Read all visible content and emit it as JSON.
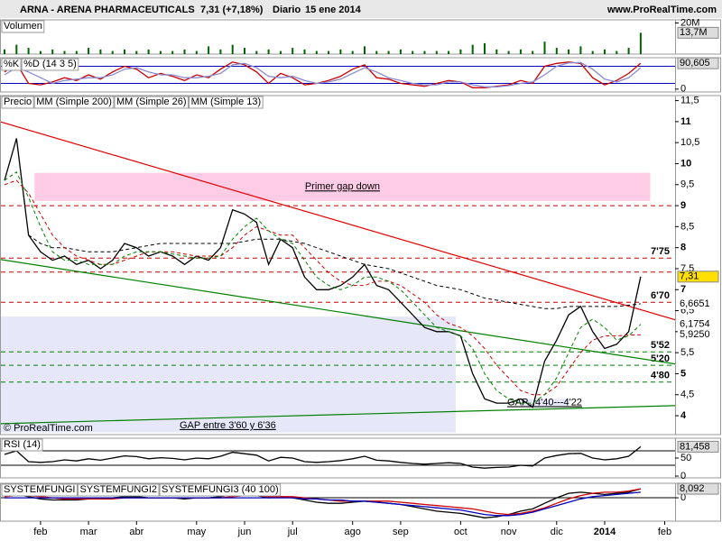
{
  "header": {
    "symbol": "ARNA - ARENA PHARMACEUTICALS",
    "price": "7,31 (+7,18%)",
    "period": "Diario",
    "date": "15 ene 2014",
    "source": "www.ProRealTime.com"
  },
  "chart_data": [
    {
      "type": "bar",
      "label": "Volumen",
      "series": [
        {
          "color": "#006400",
          "values": [
            3,
            6,
            4,
            2,
            3,
            2,
            2,
            4,
            3,
            2,
            3,
            2,
            3,
            2,
            2,
            3,
            2,
            5,
            3,
            6,
            4,
            2,
            3,
            2,
            4,
            3,
            2,
            2,
            3,
            2,
            5,
            2,
            2,
            3,
            2,
            2,
            2,
            2,
            3,
            6,
            7,
            3,
            2,
            3,
            2,
            8,
            4,
            3,
            5,
            2,
            3,
            2,
            4,
            13.7,
            null,
            null
          ]
        }
      ],
      "ylim": [
        0,
        22
      ],
      "yticks": [
        {
          "value": 20,
          "label": "20M"
        }
      ],
      "markers": [
        {
          "value": 13.7,
          "label": "13,7M",
          "color": "#000000",
          "bg": "#dddddd"
        }
      ]
    },
    {
      "type": "line",
      "series": [
        {
          "name": "%K",
          "color": "#cc0000",
          "values": [
            60,
            90,
            20,
            15,
            25,
            40,
            30,
            50,
            35,
            60,
            80,
            70,
            40,
            55,
            45,
            30,
            50,
            40,
            70,
            95,
            85,
            60,
            20,
            55,
            40,
            15,
            20,
            30,
            45,
            70,
            85,
            40,
            35,
            20,
            15,
            10,
            20,
            30,
            25,
            5,
            5,
            10,
            15,
            30,
            20,
            80,
            90,
            95,
            90,
            40,
            15,
            30,
            55,
            90.605,
            null,
            null
          ]
        },
        {
          "name": "%D (14 3 5)",
          "color": "#8a8ad0",
          "values": [
            50,
            75,
            60,
            40,
            20,
            30,
            35,
            40,
            40,
            50,
            70,
            75,
            60,
            50,
            50,
            40,
            40,
            45,
            55,
            85,
            90,
            75,
            45,
            40,
            45,
            30,
            20,
            25,
            35,
            55,
            75,
            60,
            40,
            30,
            20,
            15,
            15,
            25,
            25,
            15,
            8,
            8,
            12,
            20,
            25,
            50,
            80,
            92,
            93,
            70,
            35,
            25,
            40,
            75,
            null,
            null
          ]
        }
      ],
      "ylim": [
        -10,
        110
      ],
      "yticks": [
        0
      ],
      "levels": [
        {
          "value": 80,
          "color": "#0000c0"
        },
        {
          "value": 20,
          "color": "#0000c0"
        }
      ],
      "markers": [
        {
          "value": 90.605,
          "label": "90,605",
          "color": "#000000",
          "bg": "#dddddd"
        }
      ]
    },
    {
      "type": "line",
      "copyright": "© ProRealTime.com",
      "series": [
        {
          "name": "Precio",
          "color": "#000000",
          "values": [
            9.6,
            10.6,
            8.3,
            7.9,
            7.7,
            7.8,
            7.6,
            7.7,
            7.5,
            7.7,
            8.1,
            8.0,
            7.8,
            7.9,
            7.8,
            7.6,
            7.8,
            7.7,
            8.0,
            8.9,
            8.8,
            8.6,
            7.6,
            8.2,
            8.0,
            7.3,
            7.0,
            7.0,
            7.1,
            7.3,
            7.6,
            7.1,
            7.0,
            6.7,
            6.4,
            6.1,
            6.0,
            6.0,
            5.9,
            5.0,
            4.4,
            4.3,
            4.3,
            4.4,
            4.2,
            5.3,
            5.8,
            6.4,
            6.6,
            6.0,
            5.6,
            5.7,
            6.0,
            7.31,
            null,
            null
          ]
        },
        {
          "name": "MM (Simple 200)",
          "color": "#000000",
          "dash": true,
          "values": [
            null,
            null,
            8.3,
            8.1,
            8.0,
            8.0,
            7.95,
            7.9,
            7.9,
            7.9,
            7.95,
            8.0,
            8.05,
            8.1,
            8.1,
            8.1,
            8.1,
            8.1,
            8.1,
            8.1,
            8.15,
            8.2,
            8.2,
            8.2,
            8.15,
            8.1,
            8.0,
            7.9,
            7.8,
            7.7,
            7.6,
            7.55,
            7.5,
            7.4,
            7.3,
            7.2,
            7.1,
            7.05,
            7.0,
            6.9,
            6.8,
            6.75,
            6.7,
            6.65,
            6.6,
            6.55,
            6.55,
            6.6,
            6.6,
            6.6,
            6.6,
            6.6,
            6.63,
            6.6651,
            null,
            null
          ]
        },
        {
          "name": "MM (Simple 26)",
          "color": "#cc0000",
          "dash": true,
          "values": [
            9.5,
            9.6,
            9.3,
            8.8,
            8.3,
            8.0,
            7.8,
            7.7,
            7.6,
            7.6,
            7.7,
            7.8,
            7.9,
            7.9,
            7.9,
            7.85,
            7.8,
            7.8,
            7.8,
            8.0,
            8.3,
            8.5,
            8.4,
            8.3,
            8.3,
            8.0,
            7.7,
            7.4,
            7.2,
            7.1,
            7.1,
            7.2,
            7.2,
            7.1,
            6.9,
            6.7,
            6.4,
            6.2,
            6.1,
            5.9,
            5.6,
            5.2,
            4.9,
            4.6,
            4.5,
            4.5,
            4.7,
            5.1,
            5.5,
            5.8,
            5.9,
            5.9,
            5.92,
            5.925,
            null,
            null
          ]
        },
        {
          "name": "MM (Simple 13)",
          "color": "#008000",
          "dash": true,
          "values": [
            9.6,
            9.8,
            9.2,
            8.5,
            7.9,
            7.7,
            7.7,
            7.6,
            7.6,
            7.6,
            7.8,
            7.9,
            7.9,
            7.9,
            7.85,
            7.8,
            7.75,
            7.75,
            7.8,
            8.2,
            8.5,
            8.7,
            8.4,
            8.2,
            8.1,
            7.7,
            7.3,
            7.1,
            7.0,
            7.1,
            7.3,
            7.3,
            7.2,
            7.0,
            6.7,
            6.4,
            6.1,
            6.0,
            5.9,
            5.6,
            5.0,
            4.6,
            4.4,
            4.3,
            4.3,
            4.5,
            4.9,
            5.5,
            6.1,
            6.3,
            6.1,
            5.8,
            5.9,
            6.1754,
            null,
            null
          ]
        }
      ],
      "ylim": [
        3.55,
        11.62
      ],
      "yticks": [
        4,
        {
          "value": 4.5,
          "label": "4,5"
        },
        5,
        {
          "value": 5.5,
          "label": "5,5"
        },
        6,
        {
          "value": 6.5,
          "label": "6,5"
        },
        7,
        {
          "value": 7.5,
          "label": "7,5"
        },
        8,
        {
          "value": 8.5,
          "label": "8,5"
        },
        9,
        {
          "value": 9.5,
          "label": "9,5"
        },
        10,
        {
          "value": 10.5,
          "label": "10,5"
        },
        11,
        {
          "value": 11.5,
          "label": "11,5"
        }
      ],
      "zones": [
        {
          "label": "Primer gap down",
          "ylo": 9.11,
          "yhi": 9.78,
          "from": 2.5,
          "to": 53.8,
          "color": "#ffcce6",
          "text_color": "#000080",
          "label_at": "middle"
        },
        {
          "label": "GAP entre 3'60 y 6'36",
          "ylo": 3.6,
          "yhi": 6.36,
          "from": -0.4,
          "to": 37.6,
          "color": "#e6e8fa",
          "text_color": "#000080",
          "label_at": "bottom"
        },
        {
          "label": "GAP...4'40---4'22",
          "ylo": 4.22,
          "yhi": 4.4,
          "from": 43,
          "to": 47,
          "color": "#e6e8fa",
          "text_color": "#000080",
          "label_at": "middle"
        }
      ],
      "levels": [
        {
          "value": 9,
          "color": "#cc0000"
        },
        {
          "value": 7.75,
          "label": "7'75",
          "color": "#cc0000"
        },
        {
          "value": 7.42,
          "color": "#cc0000"
        },
        {
          "value": 6.7,
          "label": "6'70",
          "color": "#cc0000"
        },
        {
          "value": 5.52,
          "label": "5'52",
          "color": "#008000"
        },
        {
          "value": 5.2,
          "label": "5'20",
          "color": "#008000"
        },
        {
          "value": 4.8,
          "label": "4'80",
          "color": "#008000"
        }
      ],
      "trendlines": [
        {
          "color": "#e00000",
          "from": [
            -0.4,
            11.0
          ],
          "to": [
            55.9,
            6.28
          ]
        },
        {
          "color": "#008000",
          "from": [
            -0.4,
            7.72
          ],
          "to": [
            55.9,
            5.23
          ]
        },
        {
          "color": "#008000",
          "from": [
            -0.4,
            3.81
          ],
          "to": [
            55.9,
            4.24
          ]
        }
      ],
      "markers": [
        {
          "value": 7.31,
          "label": "7,31",
          "color": "#000000",
          "bg": "#ffe000"
        },
        {
          "value": 6.6651,
          "label": "6,6651",
          "color": "#000000",
          "bg": "#ffffff"
        },
        {
          "value": 6.1754,
          "label": "6,1754",
          "color": "#008000",
          "bg": "#ffffff"
        },
        {
          "value": 5.925,
          "label": "5,9250",
          "color": "#cc0000",
          "bg": "#ffffff"
        }
      ]
    },
    {
      "type": "line",
      "series": [
        {
          "name": "RSI (14)",
          "color": "#000000",
          "values": [
            60,
            70,
            40,
            38,
            40,
            45,
            42,
            48,
            44,
            50,
            56,
            54,
            48,
            51,
            49,
            45,
            50,
            48,
            55,
            66,
            62,
            58,
            42,
            52,
            50,
            40,
            38,
            40,
            43,
            48,
            55,
            44,
            42,
            38,
            35,
            33,
            35,
            37,
            35,
            25,
            22,
            24,
            25,
            30,
            28,
            50,
            57,
            62,
            63,
            50,
            45,
            48,
            55,
            81.458,
            null,
            null
          ]
        }
      ],
      "ylim": [
        -5,
        105
      ],
      "yticks": [
        0,
        50
      ],
      "levels": [
        {
          "value": 70,
          "color": "#000000"
        },
        {
          "value": 30,
          "color": "#000000"
        }
      ],
      "markers": [
        {
          "value": 81.458,
          "label": "81,458",
          "color": "#000000",
          "bg": "#dddddd"
        }
      ]
    },
    {
      "type": "line",
      "series": [
        {
          "name": "SYSTEMFUNGI",
          "color": "#000000",
          "values": [
            2,
            3,
            1,
            -1,
            -2,
            -2,
            -2,
            -1,
            -1,
            0,
            1,
            1,
            0,
            0,
            0,
            -1,
            0,
            0,
            1,
            3,
            3,
            2,
            0,
            1,
            0,
            -2,
            -4,
            -5,
            -5,
            -4,
            -3,
            -4,
            -5,
            -6,
            -8,
            -10,
            -12,
            -13,
            -14,
            -16,
            -18,
            -17,
            -15,
            -12,
            -10,
            -5,
            0,
            4,
            5,
            4,
            3,
            4,
            5,
            8.092,
            null,
            null
          ]
        },
        {
          "name": "SYSTEMFUNGI2",
          "color": "#cc0000",
          "values": [
            1,
            2,
            2,
            1,
            0,
            -1,
            -1,
            -1,
            -1,
            -1,
            0,
            0,
            0,
            0,
            0,
            0,
            0,
            0,
            0,
            1,
            2,
            2,
            1,
            1,
            1,
            0,
            -1,
            -2,
            -3,
            -3,
            -3,
            -3,
            -3,
            -4,
            -5,
            -6,
            -7,
            -8,
            -9,
            -10,
            -12,
            -14,
            -15,
            -14,
            -12,
            -9,
            -5,
            -1,
            2,
            4,
            5,
            5,
            6,
            8,
            null,
            null
          ]
        },
        {
          "name": "SYSTEMFUNGI3 (40 100)",
          "color": "#0000c0",
          "values": [
            0,
            0,
            0,
            0,
            0,
            0,
            0,
            0,
            0,
            0,
            0,
            0,
            0,
            0,
            0,
            0,
            0,
            0,
            0,
            0,
            0,
            0,
            0,
            0,
            0,
            -1,
            -1,
            -2,
            -2,
            -3,
            -3,
            -4,
            -5,
            -6,
            -7,
            -8,
            -9,
            -10,
            -11,
            -13,
            -15,
            -16,
            -16,
            -15,
            -13,
            -10,
            -7,
            -4,
            -1,
            1,
            2,
            3,
            4,
            5,
            null,
            null
          ]
        }
      ],
      "ylim": [
        -21,
        13
      ],
      "yticks": [
        0
      ],
      "levels": [
        {
          "value": 0,
          "color": "#000000"
        }
      ],
      "markers": [
        {
          "value": 8.092,
          "label": "8,092",
          "color": "#000000",
          "bg": "#dddddd"
        }
      ],
      "categories": [
        null,
        null,
        null,
        "feb",
        null,
        null,
        null,
        "mar",
        null,
        null,
        null,
        "abr",
        null,
        null,
        null,
        null,
        "may",
        null,
        null,
        null,
        "jun",
        null,
        null,
        null,
        "jul",
        null,
        null,
        null,
        null,
        "ago",
        null,
        null,
        null,
        "sep",
        null,
        null,
        null,
        null,
        "oct",
        null,
        null,
        null,
        "nov",
        null,
        null,
        null,
        "dic",
        null,
        null,
        null,
        "2014",
        null,
        null,
        null,
        null,
        "feb"
      ]
    }
  ]
}
